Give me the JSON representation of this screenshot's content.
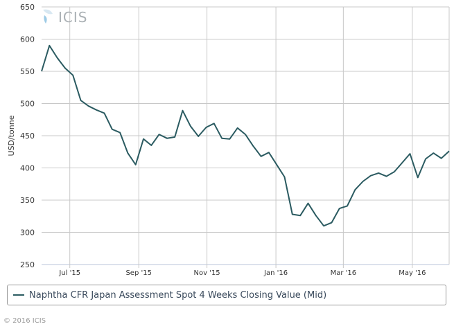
{
  "chart_data": {
    "type": "line",
    "title": "",
    "xlabel": "",
    "ylabel": "USD/tonne",
    "ylim": [
      250,
      650
    ],
    "yticks": [
      250,
      300,
      350,
      400,
      450,
      500,
      550,
      600,
      650
    ],
    "xticks": [
      {
        "label": "Jul '15",
        "week": 3.6
      },
      {
        "label": "Sep '15",
        "week": 12.4
      },
      {
        "label": "Nov '15",
        "week": 21.1
      },
      {
        "label": "Jan '16",
        "week": 29.9
      },
      {
        "label": "Mar '16",
        "week": 38.5
      },
      {
        "label": "May '16",
        "week": 47.3
      }
    ],
    "grid": true,
    "legend_placement": "bottom",
    "series": [
      {
        "name": "Naphtha CFR Japan Assessment Spot 4 Weeks Closing Value (Mid)",
        "color": "#2b5b61",
        "values": [
          550,
          590,
          571,
          555,
          544,
          505,
          496,
          490,
          485,
          460,
          455,
          423,
          405,
          445,
          435,
          452,
          446,
          448,
          489,
          465,
          449,
          463,
          469,
          446,
          445,
          462,
          452,
          434,
          418,
          424,
          405,
          386,
          328,
          326,
          345,
          326,
          310,
          315,
          337,
          341,
          366,
          379,
          388,
          392,
          387,
          394,
          408,
          422,
          385,
          414,
          423,
          415,
          426
        ]
      }
    ]
  },
  "logo": {
    "text": "ICIS"
  },
  "copyright": "© 2016 ICIS"
}
